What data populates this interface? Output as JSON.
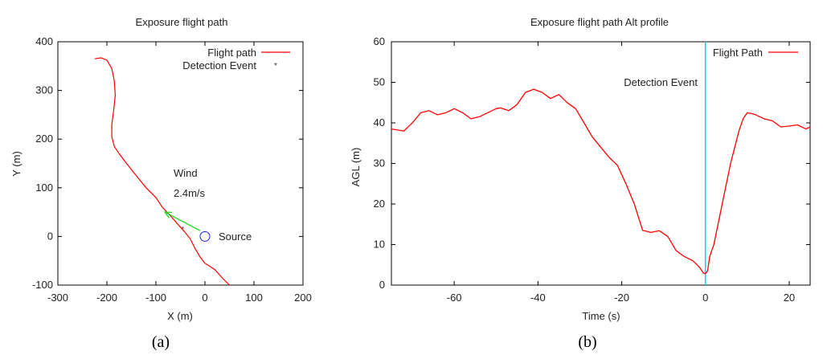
{
  "chart_data": [
    {
      "type": "line",
      "title": "Exposure flight path",
      "xlabel": "X (m)",
      "ylabel": "Y (m)",
      "xlim": [
        -300,
        200
      ],
      "ylim": [
        -100,
        400
      ],
      "xticks": [
        -300,
        -200,
        -100,
        0,
        100,
        200
      ],
      "yticks": [
        -100,
        0,
        100,
        200,
        300,
        400
      ],
      "grid": false,
      "legend_position": "top-right",
      "caption": "(a)",
      "series": [
        {
          "name": "Flight path",
          "color": "#ff0000",
          "x": [
            -225,
            -212,
            -200,
            -190,
            -185,
            -183,
            -186,
            -190,
            -190,
            -185,
            -175,
            -160,
            -140,
            -120,
            -100,
            -87,
            -70,
            -55,
            -42,
            -30,
            -20,
            -10,
            0,
            20,
            35,
            50
          ],
          "y": [
            365,
            367,
            362,
            345,
            320,
            290,
            260,
            230,
            205,
            185,
            170,
            150,
            125,
            100,
            80,
            60,
            42,
            25,
            10,
            -5,
            -25,
            -42,
            -55,
            -68,
            -85,
            -100
          ]
        }
      ],
      "detection_event": {
        "name": "Detection Event",
        "x": -45,
        "y": 15,
        "color": "#333333"
      },
      "wind": {
        "label": "Wind",
        "speed": "2.4m/s",
        "color": "#22dd22",
        "from": [
          -10,
          12
        ],
        "to": [
          -82,
          50
        ]
      },
      "source": {
        "label": "Source",
        "x": 0,
        "y": 0,
        "color": "#2222dd"
      }
    },
    {
      "type": "line",
      "title": "Exposure flight path Alt profile",
      "xlabel": "Time (s)",
      "ylabel": "AGL (m)",
      "xlim": [
        -75,
        25
      ],
      "ylim": [
        0,
        60
      ],
      "xticks": [
        -60,
        -40,
        -20,
        0,
        20
      ],
      "yticks": [
        0,
        10,
        20,
        30,
        40,
        50,
        60
      ],
      "grid": false,
      "legend_position": "top-right",
      "caption": "(b)",
      "series": [
        {
          "name": "Flight Path",
          "color": "#ff0000",
          "x": [
            -75,
            -72,
            -70,
            -68,
            -66,
            -64,
            -62,
            -60,
            -58,
            -56,
            -54,
            -52,
            -50,
            -49,
            -47,
            -45,
            -43,
            -41,
            -39,
            -37,
            -35,
            -33,
            -31,
            -29,
            -27,
            -25,
            -23,
            -21,
            -19,
            -17,
            -15,
            -13,
            -11,
            -9,
            -7,
            -5,
            -3,
            -1.5,
            -0.5,
            0,
            0.5,
            1,
            2,
            3,
            4,
            5,
            6,
            7,
            8,
            9,
            10,
            11,
            12,
            14,
            16,
            18,
            20,
            22,
            24,
            25
          ],
          "y": [
            38.5,
            38,
            40,
            42.5,
            43,
            42,
            42.5,
            43.5,
            42.5,
            41,
            41.5,
            42.5,
            43.5,
            43.7,
            43,
            44.5,
            47.5,
            48.3,
            47.5,
            46,
            47,
            45,
            43.5,
            40,
            36.5,
            34,
            31.5,
            29.5,
            25,
            20,
            13.5,
            13,
            13.4,
            12,
            8.5,
            7,
            6,
            4.5,
            3,
            2.8,
            3.5,
            7,
            10,
            15,
            20,
            25,
            30,
            34,
            38,
            41,
            42.5,
            42.3,
            42,
            41,
            40.5,
            39,
            39.2,
            39.5,
            38.5,
            39
          ]
        }
      ],
      "detection_event": {
        "name": "Detection Event",
        "x": 0,
        "color": "#00d8e8"
      }
    }
  ]
}
